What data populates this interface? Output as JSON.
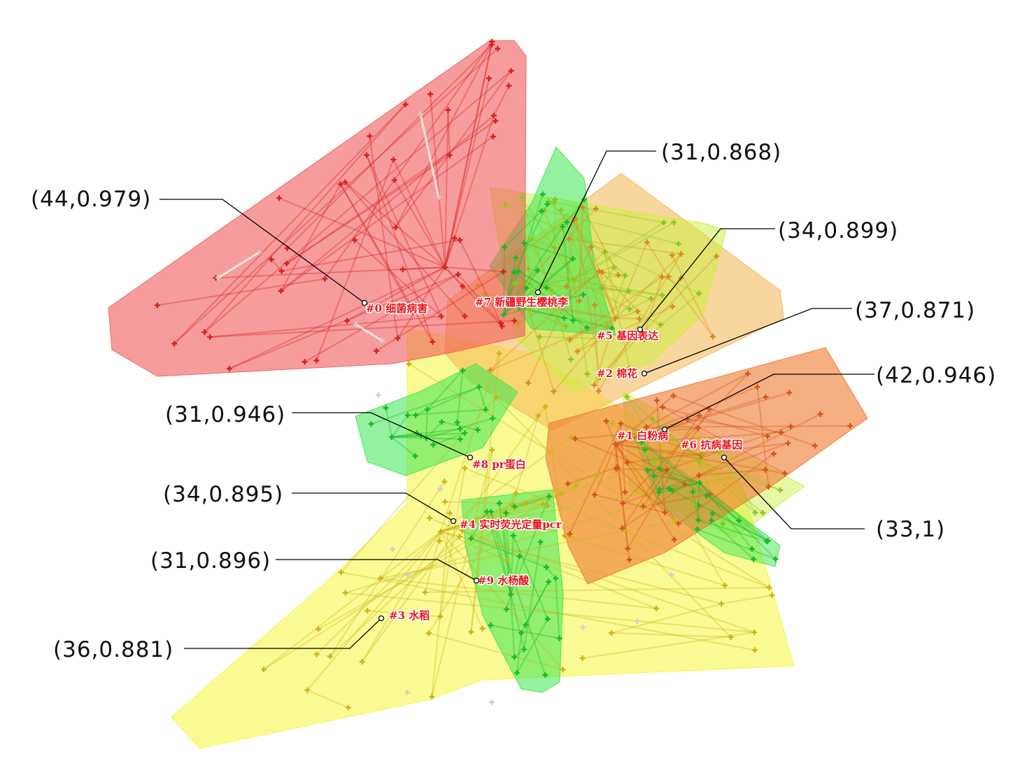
{
  "colors": {
    "red": "#f05a5a",
    "orange": "#f07830",
    "light_orange": "#f5b450",
    "yellow": "#f5f53c",
    "green": "#3ce650",
    "light_green": "#c8f03c",
    "ghost": "#d8d8d8"
  },
  "node_icon": "plus-marker-icon",
  "clusters": [
    {
      "id": 0,
      "tag": "#0",
      "label": "细菌病害",
      "size": 44,
      "silhouette": 0.979,
      "callout": "(44,0.979)",
      "color": "#f05a5a"
    },
    {
      "id": 1,
      "tag": "#1",
      "label": "白粉病",
      "size": 42,
      "silhouette": 0.946,
      "callout": "(42,0.946)",
      "color": "#f07830"
    },
    {
      "id": 2,
      "tag": "#2",
      "label": "棉花",
      "size": 37,
      "silhouette": 0.871,
      "callout": "(37,0.871)",
      "color": "#f5b450"
    },
    {
      "id": 3,
      "tag": "#3",
      "label": "水稻",
      "size": 36,
      "silhouette": 0.881,
      "callout": "(36,0.881)",
      "color": "#f5f53c"
    },
    {
      "id": 4,
      "tag": "#4",
      "label": "实时荧光定量pcr",
      "size": 34,
      "silhouette": 0.895,
      "callout": "(34,0.895)",
      "color": "#f5f53c"
    },
    {
      "id": 5,
      "tag": "#5",
      "label": "基因表达",
      "size": 34,
      "silhouette": 0.899,
      "callout": "(34,0.899)",
      "color": "#c8f03c"
    },
    {
      "id": 6,
      "tag": "#6",
      "label": "抗病基因",
      "size": 33,
      "silhouette": 1,
      "callout": "(33,1)",
      "color": "#3ce650"
    },
    {
      "id": 7,
      "tag": "#7",
      "label": "新疆野生樱桃李",
      "size": 31,
      "silhouette": 0.868,
      "callout": "(31,0.868)",
      "color": "#3ce650"
    },
    {
      "id": 8,
      "tag": "#8",
      "label": "pr蛋白",
      "size": 31,
      "silhouette": 0.946,
      "callout": "(31,0.946)",
      "color": "#3ce650"
    },
    {
      "id": 9,
      "tag": "#9",
      "label": "水杨酸",
      "size": 31,
      "silhouette": 0.896,
      "callout": "(31,0.896)",
      "color": "#3ce650"
    }
  ]
}
